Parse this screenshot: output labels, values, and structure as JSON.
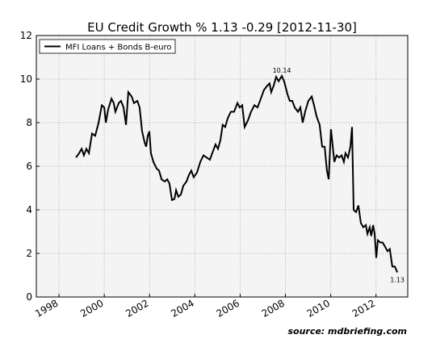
{
  "chart_data": {
    "type": "line",
    "title": "EU Credit Growth % 1.13 -0.29 [2012-11-30]",
    "source": "source: mdbriefing.com",
    "xlim": [
      1997,
      2013.4
    ],
    "ylim": [
      0,
      12
    ],
    "xticks": [
      1998,
      2000,
      2002,
      2004,
      2006,
      2008,
      2010,
      2012
    ],
    "yticks": [
      0,
      2,
      4,
      6,
      8,
      10,
      12
    ],
    "grid": true,
    "legend": "upper left",
    "series": [
      {
        "name": "MFI Loans + Bonds B-euro",
        "color": "#000000",
        "x": [
          1998.75,
          1998.89,
          1999.0,
          1999.1,
          1999.21,
          1999.32,
          1999.46,
          1999.6,
          1999.75,
          1999.89,
          2000.0,
          2000.07,
          2000.17,
          2000.32,
          2000.42,
          2000.49,
          2000.64,
          2000.74,
          2000.85,
          2000.96,
          2001.06,
          2001.21,
          2001.31,
          2001.46,
          2001.56,
          2001.67,
          2001.78,
          2001.85,
          2001.92,
          2001.99,
          2002.06,
          2002.17,
          2002.31,
          2002.42,
          2002.53,
          2002.67,
          2002.78,
          2002.88,
          2002.99,
          2003.1,
          2003.17,
          2003.27,
          2003.38,
          2003.49,
          2003.63,
          2003.74,
          2003.84,
          2003.95,
          2004.09,
          2004.24,
          2004.38,
          2004.52,
          2004.66,
          2004.77,
          2004.91,
          2005.02,
          2005.13,
          2005.23,
          2005.34,
          2005.45,
          2005.59,
          2005.73,
          2005.88,
          2005.98,
          2006.09,
          2006.2,
          2006.34,
          2006.48,
          2006.63,
          2006.77,
          2006.91,
          2007.05,
          2007.2,
          2007.3,
          2007.37,
          2007.48,
          2007.59,
          2007.7,
          2007.84,
          2007.94,
          2008.09,
          2008.19,
          2008.3,
          2008.41,
          2008.55,
          2008.66,
          2008.76,
          2008.87,
          2009.01,
          2009.16,
          2009.26,
          2009.37,
          2009.51,
          2009.62,
          2009.73,
          2009.83,
          2009.91,
          2010.01,
          2010.16,
          2010.26,
          2010.37,
          2010.48,
          2010.58,
          2010.65,
          2010.76,
          2010.87,
          2010.94,
          2011.01,
          2011.12,
          2011.22,
          2011.33,
          2011.44,
          2011.55,
          2011.62,
          2011.72,
          2011.79,
          2011.87,
          2011.94,
          2012.01,
          2012.08,
          2012.19,
          2012.29,
          2012.4,
          2012.51,
          2012.61,
          2012.72,
          2012.83,
          2012.94
        ],
        "values": [
          6.4,
          6.6,
          6.8,
          6.5,
          6.8,
          6.6,
          7.5,
          7.4,
          8.0,
          8.8,
          8.7,
          8.0,
          8.6,
          9.1,
          8.9,
          8.5,
          8.9,
          9.0,
          8.7,
          7.9,
          9.4,
          9.2,
          8.9,
          9.0,
          8.7,
          7.6,
          7.1,
          6.9,
          7.4,
          7.6,
          6.6,
          6.2,
          5.9,
          5.8,
          5.4,
          5.3,
          5.4,
          5.2,
          4.45,
          4.5,
          4.9,
          4.6,
          4.7,
          5.1,
          5.3,
          5.6,
          5.8,
          5.5,
          5.7,
          6.2,
          6.5,
          6.4,
          6.3,
          6.6,
          7.0,
          6.8,
          7.2,
          7.9,
          7.8,
          8.2,
          8.5,
          8.5,
          8.9,
          8.7,
          8.8,
          7.8,
          8.1,
          8.5,
          8.8,
          8.7,
          9.1,
          9.5,
          9.7,
          9.8,
          9.4,
          9.7,
          10.1,
          9.9,
          10.14,
          9.9,
          9.3,
          9.0,
          9.0,
          8.7,
          8.5,
          8.7,
          8.0,
          8.5,
          9.0,
          9.2,
          8.8,
          8.3,
          7.9,
          6.9,
          6.9,
          5.8,
          5.4,
          7.7,
          6.2,
          6.5,
          6.4,
          6.5,
          6.2,
          6.6,
          6.4,
          6.9,
          7.8,
          4.0,
          3.9,
          4.2,
          3.4,
          3.2,
          3.3,
          2.9,
          3.2,
          2.8,
          3.3,
          2.9,
          1.8,
          2.6,
          2.5,
          2.5,
          2.3,
          2.1,
          2.2,
          1.4,
          1.4,
          1.13
        ]
      }
    ]
  }
}
